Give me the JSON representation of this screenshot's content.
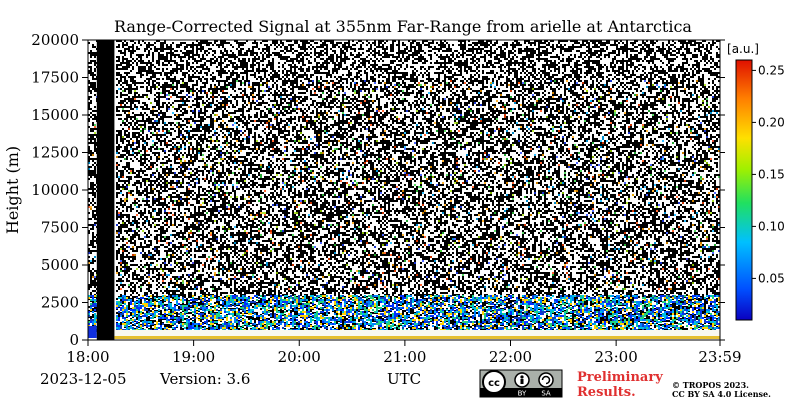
{
  "chart_data": {
    "type": "heatmap",
    "title": "Range-Corrected Signal at 355nm Far-Range from arielle at Antarctica",
    "xlabel": "UTC",
    "ylabel": "Height (m)",
    "x_ticks": [
      "18:00",
      "19:00",
      "20:00",
      "21:00",
      "22:00",
      "23:00",
      "23:59"
    ],
    "x_range": [
      "18:00",
      "23:59"
    ],
    "y_ticks": [
      0,
      2500,
      5000,
      7500,
      10000,
      12500,
      15000,
      17500,
      20000
    ],
    "ylim": [
      0,
      20000
    ],
    "colorbar": {
      "unit": "[a.u.]",
      "ticks": [
        0.05,
        0.1,
        0.15,
        0.2,
        0.25
      ],
      "tick_labels": [
        "0.05",
        "0.10",
        "0.15",
        "0.20",
        "0.25"
      ],
      "range": [
        0.01,
        0.26
      ],
      "colormap": "jet"
    },
    "no_data_interval": [
      "18:05",
      "18:15"
    ],
    "noise_floor_height": 1000
  },
  "footer": {
    "date": "2023-12-05",
    "version": "Version: 3.6",
    "utc_label": "UTC",
    "preliminary": [
      "Preliminary",
      "Results."
    ],
    "copyright": [
      "© TROPOS 2023.",
      "CC BY SA 4.0 License."
    ],
    "license_badge": [
      "BY",
      "SA"
    ]
  },
  "colors": {
    "preliminary": "#e03030",
    "no_data": "#000000"
  }
}
